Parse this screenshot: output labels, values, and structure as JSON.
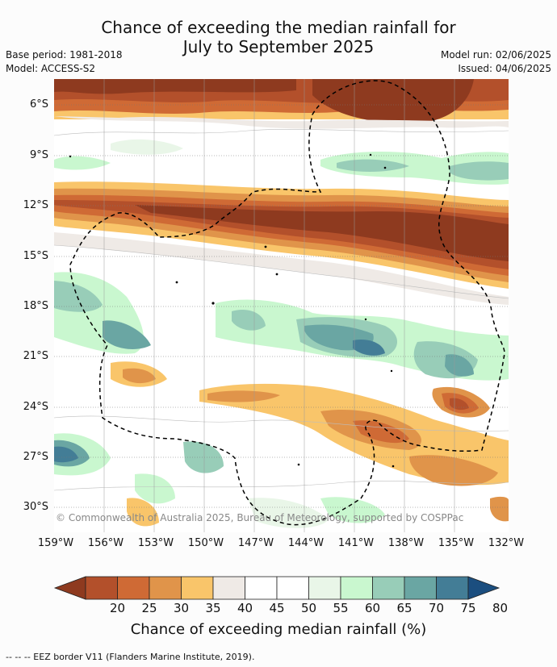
{
  "title_line1": "Chance of exceeding the median rainfall for",
  "title_line2": "July to September 2025",
  "base_period": "Base period: 1981-2018",
  "model": "Model: ACCESS-S2",
  "model_run": "Model run: 02/06/2025",
  "issued": "Issued: 04/06/2025",
  "copyright": "© Commonwealth of Australia 2025, Bureau of Meteorology, supported by COSPPac",
  "lat_labels": [
    "6°S",
    "9°S",
    "12°S",
    "15°S",
    "18°S",
    "21°S",
    "24°S",
    "27°S",
    "30°S"
  ],
  "lon_labels": [
    "159°W",
    "156°W",
    "153°W",
    "150°W",
    "147°W",
    "144°W",
    "141°W",
    "138°W",
    "135°W",
    "132°W"
  ],
  "colorbar": {
    "ticks": [
      "20",
      "25",
      "30",
      "35",
      "40",
      "45",
      "50",
      "55",
      "60",
      "65",
      "70",
      "75",
      "80"
    ],
    "colors": [
      "#8e3a1f",
      "#b3502b",
      "#cf6a35",
      "#e0944a",
      "#f9c56a",
      "#efeae6",
      "#ffffff",
      "#ffffff",
      "#e9f6e8",
      "#c9f7cf",
      "#98cdb8",
      "#6aa6a3",
      "#437d96",
      "#1b4e7f"
    ],
    "label": "Chance of exceeding median rainfall (%)"
  },
  "footer": "-- -- -- EEZ border V11 (Flanders Marine Institute, 2019)."
}
